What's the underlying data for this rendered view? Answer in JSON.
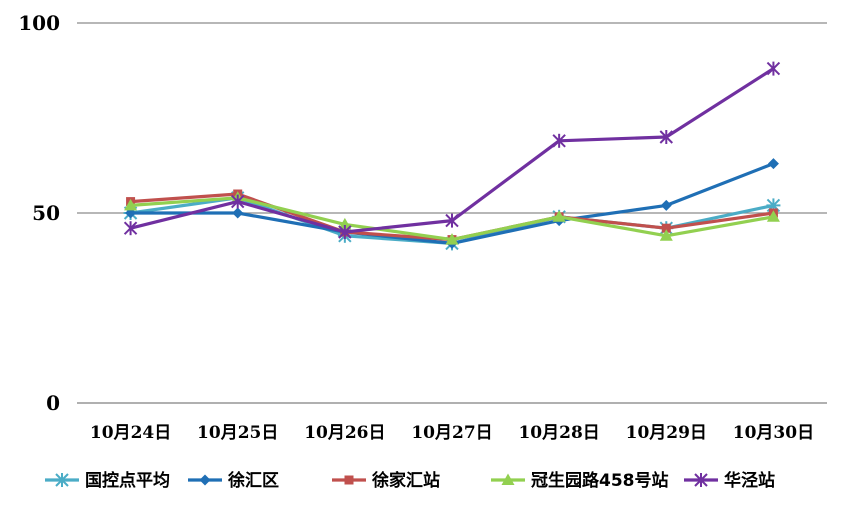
{
  "chart_data": {
    "type": "line",
    "title": "",
    "xlabel": "",
    "ylabel": "",
    "ylim": [
      0,
      100
    ],
    "yticks": [
      0,
      50,
      100
    ],
    "grid": true,
    "legend_position": "bottom",
    "categories": [
      "10月24日",
      "10月25日",
      "10月26日",
      "10月27日",
      "10月28日",
      "10月29日",
      "10月30日"
    ],
    "series": [
      {
        "name": "国控点平均",
        "color": "#4BACC6",
        "marker": "star",
        "values": [
          50,
          54,
          44,
          42,
          49,
          46,
          52
        ]
      },
      {
        "name": "徐汇区",
        "color": "#1F6FB5",
        "marker": "diamond",
        "values": [
          50,
          50,
          45,
          42,
          48,
          52,
          63
        ]
      },
      {
        "name": "徐家汇站",
        "color": "#C0504D",
        "marker": "square",
        "values": [
          53,
          55,
          45,
          43,
          49,
          46,
          50
        ]
      },
      {
        "name": "冠生园路458号站",
        "color": "#92D050",
        "marker": "triangle",
        "values": [
          52,
          54,
          47,
          43,
          49,
          44,
          49
        ]
      },
      {
        "name": "华泾站",
        "color": "#7030A0",
        "marker": "asterisk",
        "values": [
          46,
          53,
          45,
          48,
          69,
          70,
          88
        ]
      }
    ]
  }
}
